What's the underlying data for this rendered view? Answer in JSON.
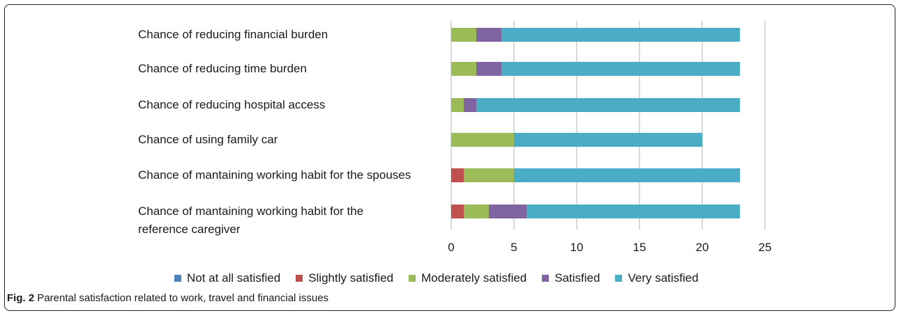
{
  "chart_data": {
    "type": "bar",
    "orientation": "horizontal",
    "stacked": true,
    "categories": [
      "Chance of reducing financial burden",
      "Chance of reducing time burden",
      "Chance of reducing hospital access",
      "Chance of using family car",
      "Chance of mantaining working habit for the spouses",
      "Chance of mantaining working habit for the reference caregiver"
    ],
    "category_lines": [
      [
        "Chance of reducing financial burden"
      ],
      [
        "Chance of reducing time burden"
      ],
      [
        "Chance of reducing hospital access"
      ],
      [
        "Chance of using family car"
      ],
      [
        "Chance of mantaining working habit for the spouses"
      ],
      [
        "Chance of mantaining working habit for the",
        "reference caregiver"
      ]
    ],
    "series": [
      {
        "name": "Not at all satisfied",
        "color": "#4f81bd",
        "values": [
          0,
          0,
          0,
          0,
          0,
          0
        ]
      },
      {
        "name": "Slightly satisfied",
        "color": "#c0504d",
        "values": [
          0,
          0,
          0,
          0,
          1,
          1
        ]
      },
      {
        "name": "Moderately satisfied",
        "color": "#9bbb59",
        "values": [
          2,
          2,
          1,
          5,
          4,
          2
        ]
      },
      {
        "name": "Satisfied",
        "color": "#8064a2",
        "values": [
          2,
          2,
          1,
          0,
          0,
          3
        ]
      },
      {
        "name": "Very satisfied",
        "color": "#4bacc6",
        "values": [
          19,
          19,
          21,
          15,
          18,
          17
        ]
      }
    ],
    "xlim": [
      0,
      25
    ],
    "x_ticks": [
      0,
      5,
      10,
      15,
      20,
      25
    ],
    "grid": true,
    "legend_position": "bottom"
  },
  "caption": {
    "label": "Fig. 2",
    "text": " Parental satisfaction related to work, travel and financial issues"
  }
}
